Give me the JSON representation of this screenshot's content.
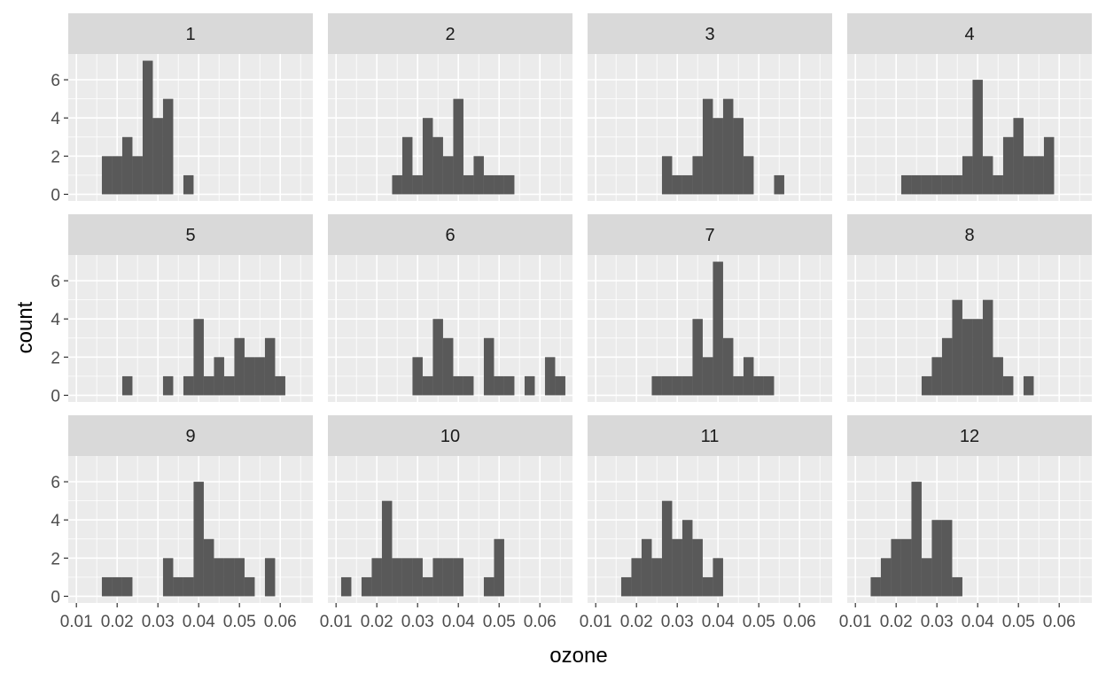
{
  "chart_data": {
    "type": "bar",
    "subtype": "faceted-histogram",
    "xlabel": "ozone",
    "ylabel": "count",
    "xlim": [
      0.008,
      0.068
    ],
    "ylim": [
      -0.35,
      7.35
    ],
    "bin_width": 0.0025,
    "x_ticks": [
      0.01,
      0.02,
      0.03,
      0.04,
      0.05,
      0.06
    ],
    "x_tick_labels": [
      "0.01",
      "0.02",
      "0.03",
      "0.04",
      "0.05",
      "0.06"
    ],
    "y_ticks": [
      0,
      2,
      4,
      6
    ],
    "y_tick_labels": [
      "0",
      "2",
      "4",
      "6"
    ],
    "grid": true,
    "colors": {
      "bar": "#595959",
      "panel": "#ebebeb",
      "strip": "#d9d9d9",
      "grid": "#ffffff"
    },
    "panels": [
      {
        "label": "1",
        "bins": [
          [
            0.0175,
            2
          ],
          [
            0.02,
            2
          ],
          [
            0.0225,
            3
          ],
          [
            0.025,
            2
          ],
          [
            0.0275,
            7
          ],
          [
            0.03,
            4
          ],
          [
            0.0325,
            5
          ],
          [
            0.0375,
            1
          ]
        ]
      },
      {
        "label": "2",
        "bins": [
          [
            0.025,
            1
          ],
          [
            0.0275,
            3
          ],
          [
            0.03,
            1
          ],
          [
            0.0325,
            4
          ],
          [
            0.035,
            3
          ],
          [
            0.0375,
            2
          ],
          [
            0.04,
            5
          ],
          [
            0.0425,
            1
          ],
          [
            0.045,
            2
          ],
          [
            0.0475,
            1
          ],
          [
            0.05,
            1
          ],
          [
            0.0525,
            1
          ]
        ]
      },
      {
        "label": "3",
        "bins": [
          [
            0.0275,
            2
          ],
          [
            0.03,
            1
          ],
          [
            0.0325,
            1
          ],
          [
            0.035,
            2
          ],
          [
            0.0375,
            5
          ],
          [
            0.04,
            4
          ],
          [
            0.0425,
            5
          ],
          [
            0.045,
            4
          ],
          [
            0.0475,
            2
          ],
          [
            0.055,
            1
          ]
        ]
      },
      {
        "label": "4",
        "bins": [
          [
            0.0225,
            1
          ],
          [
            0.025,
            1
          ],
          [
            0.0275,
            1
          ],
          [
            0.03,
            1
          ],
          [
            0.0325,
            1
          ],
          [
            0.035,
            1
          ],
          [
            0.0375,
            2
          ],
          [
            0.04,
            6
          ],
          [
            0.0425,
            2
          ],
          [
            0.045,
            1
          ],
          [
            0.0475,
            3
          ],
          [
            0.05,
            4
          ],
          [
            0.0525,
            2
          ],
          [
            0.055,
            2
          ],
          [
            0.0575,
            3
          ]
        ]
      },
      {
        "label": "5",
        "bins": [
          [
            0.0225,
            1
          ],
          [
            0.0325,
            1
          ],
          [
            0.0375,
            1
          ],
          [
            0.04,
            4
          ],
          [
            0.0425,
            1
          ],
          [
            0.045,
            2
          ],
          [
            0.0475,
            1
          ],
          [
            0.05,
            3
          ],
          [
            0.0525,
            2
          ],
          [
            0.055,
            2
          ],
          [
            0.0575,
            3
          ],
          [
            0.06,
            1
          ]
        ]
      },
      {
        "label": "6",
        "bins": [
          [
            0.03,
            2
          ],
          [
            0.0325,
            1
          ],
          [
            0.035,
            4
          ],
          [
            0.0375,
            3
          ],
          [
            0.04,
            1
          ],
          [
            0.0425,
            1
          ],
          [
            0.0475,
            3
          ],
          [
            0.05,
            1
          ],
          [
            0.0525,
            1
          ],
          [
            0.0575,
            1
          ],
          [
            0.0625,
            2
          ],
          [
            0.065,
            1
          ]
        ]
      },
      {
        "label": "7",
        "bins": [
          [
            0.025,
            1
          ],
          [
            0.0275,
            1
          ],
          [
            0.03,
            1
          ],
          [
            0.0325,
            1
          ],
          [
            0.035,
            4
          ],
          [
            0.0375,
            2
          ],
          [
            0.04,
            7
          ],
          [
            0.0425,
            3
          ],
          [
            0.045,
            1
          ],
          [
            0.0475,
            2
          ],
          [
            0.05,
            1
          ],
          [
            0.0525,
            1
          ]
        ]
      },
      {
        "label": "8",
        "bins": [
          [
            0.0275,
            1
          ],
          [
            0.03,
            2
          ],
          [
            0.0325,
            3
          ],
          [
            0.035,
            5
          ],
          [
            0.0375,
            4
          ],
          [
            0.04,
            4
          ],
          [
            0.0425,
            5
          ],
          [
            0.045,
            2
          ],
          [
            0.0475,
            1
          ],
          [
            0.0525,
            1
          ]
        ]
      },
      {
        "label": "9",
        "bins": [
          [
            0.0175,
            1
          ],
          [
            0.02,
            1
          ],
          [
            0.0225,
            1
          ],
          [
            0.0325,
            2
          ],
          [
            0.035,
            1
          ],
          [
            0.0375,
            1
          ],
          [
            0.04,
            6
          ],
          [
            0.0425,
            3
          ],
          [
            0.045,
            2
          ],
          [
            0.0475,
            2
          ],
          [
            0.05,
            2
          ],
          [
            0.0525,
            1
          ],
          [
            0.0575,
            2
          ]
        ]
      },
      {
        "label": "10",
        "bins": [
          [
            0.0125,
            1
          ],
          [
            0.0175,
            1
          ],
          [
            0.02,
            2
          ],
          [
            0.0225,
            5
          ],
          [
            0.025,
            2
          ],
          [
            0.0275,
            2
          ],
          [
            0.03,
            2
          ],
          [
            0.0325,
            1
          ],
          [
            0.035,
            2
          ],
          [
            0.0375,
            2
          ],
          [
            0.04,
            2
          ],
          [
            0.0475,
            1
          ],
          [
            0.05,
            3
          ]
        ]
      },
      {
        "label": "11",
        "bins": [
          [
            0.0175,
            1
          ],
          [
            0.02,
            2
          ],
          [
            0.0225,
            3
          ],
          [
            0.025,
            2
          ],
          [
            0.0275,
            5
          ],
          [
            0.03,
            3
          ],
          [
            0.0325,
            4
          ],
          [
            0.035,
            3
          ],
          [
            0.0375,
            1
          ],
          [
            0.04,
            2
          ]
        ]
      },
      {
        "label": "12",
        "bins": [
          [
            0.015,
            1
          ],
          [
            0.0175,
            2
          ],
          [
            0.02,
            3
          ],
          [
            0.0225,
            3
          ],
          [
            0.025,
            6
          ],
          [
            0.0275,
            2
          ],
          [
            0.03,
            4
          ],
          [
            0.0325,
            4
          ],
          [
            0.035,
            1
          ]
        ]
      }
    ]
  }
}
